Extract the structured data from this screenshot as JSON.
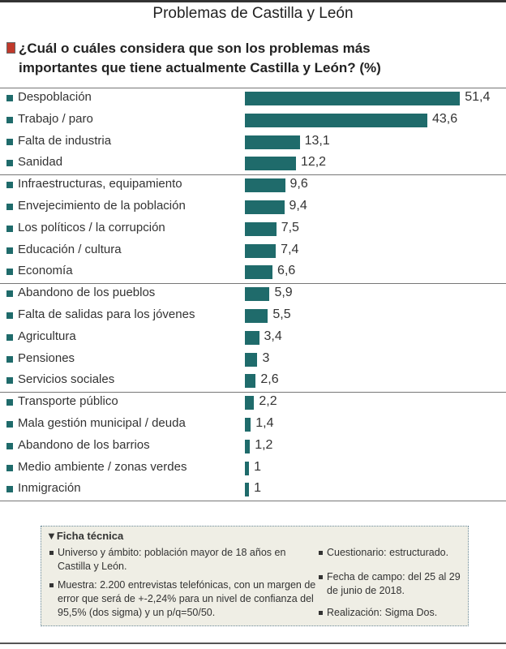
{
  "chart_data": {
    "type": "bar",
    "orientation": "horizontal",
    "title": "Problemas de Castilla y León",
    "subtitle": "¿Cuál o cuáles considera que son los problemas más importantes que tiene actualmente Castilla y León? (%)",
    "categories": [
      "Despoblación",
      "Trabajo / paro",
      "Falta de industria",
      "Sanidad",
      "Infraestructuras, equipamiento",
      "Envejecimiento de la población",
      "Los políticos / la corrupción",
      "Educación / cultura",
      "Economía",
      "Abandono de los pueblos",
      "Falta de salidas para los jóvenes",
      "Agricultura",
      "Pensiones",
      "Servicios sociales",
      "Transporte público",
      "Mala gestión municipal / deuda",
      "Abandono de los barrios",
      "Medio ambiente / zonas verdes",
      "Inmigración"
    ],
    "values": [
      51.4,
      43.6,
      13.1,
      12.2,
      9.6,
      9.4,
      7.5,
      7.4,
      6.6,
      5.9,
      5.5,
      3.4,
      3,
      2.6,
      2.2,
      1.4,
      1.2,
      1,
      1
    ],
    "value_labels": [
      "51,4",
      "43,6",
      "13,1",
      "12,2",
      "9,6",
      "9,4",
      "7,5",
      "7,4",
      "6,6",
      "5,9",
      "5,5",
      "3,4",
      "3",
      "2,6",
      "2,2",
      "1,4",
      "1,2",
      "1",
      "1"
    ],
    "bar_color": "#1f6b6b"
  },
  "ficha": {
    "heading": "▼Ficha técnica",
    "items": [
      "Universo y ámbito: población mayor de 18 años en Castilla y León.",
      "Muestra: 2.200 entrevistas telefónicas, con un margen de error que será de +-2,24% para un nivel de confianza del 95,5% (dos sigma) y un p/q=50/50.",
      "Cuestionario: estructurado.",
      "Fecha de campo: del 25 al 29 de junio de 2018.",
      "Realización: Sigma Dos."
    ]
  }
}
